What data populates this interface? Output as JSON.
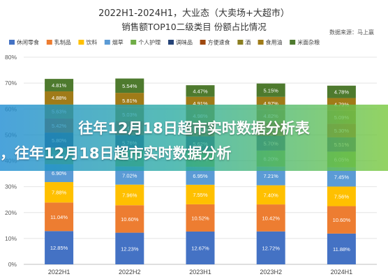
{
  "chart_data": {
    "type": "bar",
    "stacked": true,
    "title": "2022H1-2024H1，大业态（大卖场+大超市）",
    "subtitle": "销售额TOP10二级类目 份额占比情况",
    "source": "数据来源：马上赢",
    "categories": [
      "2022H1",
      "2022H2",
      "2023H1",
      "2023H2",
      "2024H1"
    ],
    "ylim": [
      0,
      80
    ],
    "yticks": [
      "0%",
      "10%",
      "20%",
      "30%",
      "40%",
      "50%",
      "60%",
      "70%",
      "80%"
    ],
    "legend_position": "top",
    "grid": true,
    "series": [
      {
        "name": "休闲零食",
        "color": "#4472C4",
        "values": [
          12.85,
          12.23,
          12.67,
          12.72,
          11.88
        ]
      },
      {
        "name": "乳制品",
        "color": "#ED7D31",
        "values": [
          11.04,
          10.6,
          10.52,
          10.42,
          10.6
        ]
      },
      {
        "name": "饮料",
        "color": "#FFC000",
        "values": [
          7.88,
          7.96,
          7.55,
          7.4,
          7.56
        ]
      },
      {
        "name": "烟草",
        "color": "#5B9BD5",
        "values": [
          6.9,
          7.02,
          6.95,
          7.21,
          7.45
        ]
      },
      {
        "name": "个人护理",
        "color": "#70AD47",
        "values": [
          6.41,
          6.35,
          6.13,
          6.2,
          6.05
        ]
      },
      {
        "name": "调味品",
        "color": "#264478",
        "values": [
          5.8,
          5.76,
          5.62,
          5.7,
          5.51
        ]
      },
      {
        "name": "方便速食",
        "color": "#9E480E",
        "values": [
          5.42,
          5.47,
          5.38,
          5.25,
          5.3
        ]
      },
      {
        "name": "酒",
        "color": "#8B7F22",
        "values": [
          5.63,
          5.03,
          4.98,
          4.82,
          5.09
        ]
      },
      {
        "name": "食用油",
        "color": "#A07B18",
        "values": [
          4.88,
          5.81,
          4.91,
          4.97,
          4.79
        ]
      },
      {
        "name": "米面杂粮",
        "color": "#4E7A2E",
        "values": [
          4.81,
          5.54,
          4.47,
          5.15,
          4.78
        ]
      }
    ]
  },
  "banner": {
    "line1": "往年12月18日超市实时数据分析表",
    "line2": "，往年12月18日超市实时数据分析"
  }
}
